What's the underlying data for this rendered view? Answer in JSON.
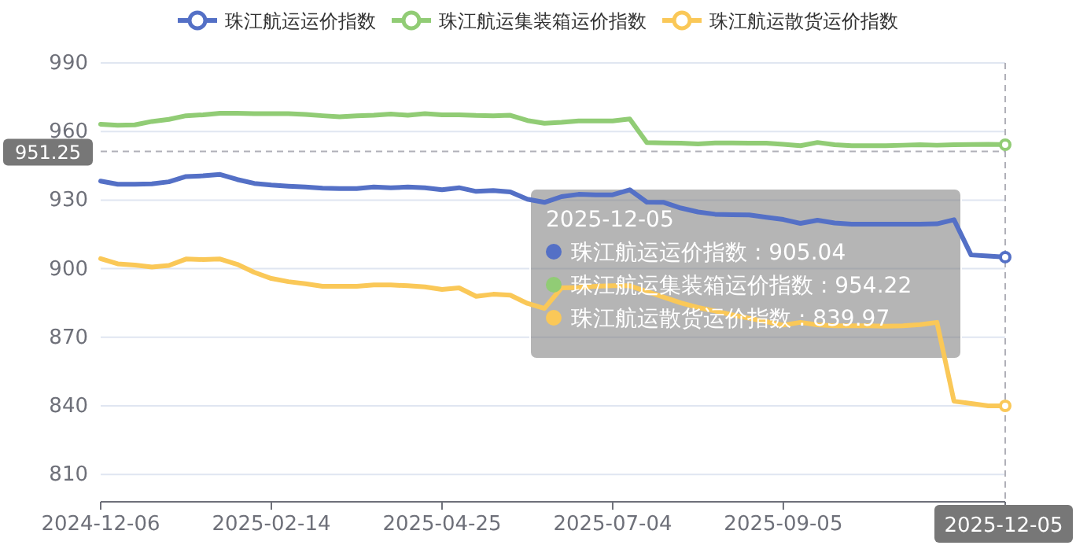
{
  "chart_data": {
    "type": "line",
    "categories": [
      "2024-12-06",
      null,
      null,
      null,
      null,
      null,
      null,
      null,
      null,
      null,
      "2025-02-14",
      null,
      null,
      null,
      null,
      null,
      null,
      null,
      null,
      null,
      "2025-04-25",
      null,
      null,
      null,
      null,
      null,
      null,
      null,
      null,
      null,
      "2025-07-04",
      null,
      null,
      null,
      null,
      null,
      null,
      null,
      null,
      null,
      "2025-09-05",
      null,
      null,
      null,
      null,
      null,
      null,
      null,
      null,
      null,
      null,
      null,
      null,
      "2025-12-05"
    ],
    "series": [
      {
        "name": "珠江航运运价指数",
        "color": "#5470c6",
        "values": [
          938.3,
          936.9,
          936.9,
          937.1,
          938.0,
          940.3,
          940.6,
          941.2,
          939.0,
          937.3,
          936.6,
          936.1,
          935.7,
          935.2,
          935.0,
          935.0,
          935.7,
          935.4,
          935.7,
          935.4,
          934.5,
          935.4,
          933.8,
          934.2,
          933.6,
          930.4,
          929.0,
          931.5,
          932.5,
          932.3,
          932.3,
          934.5,
          929.1,
          929.0,
          926.5,
          924.8,
          923.8,
          923.6,
          923.5,
          922.5,
          921.5,
          919.8,
          921.2,
          920.0,
          919.5,
          919.5,
          919.5,
          919.5,
          919.5,
          919.6,
          921.4,
          906.0,
          905.5,
          905.04
        ]
      },
      {
        "name": "珠江航运集装箱运价指数",
        "color": "#91cc75",
        "values": [
          963.2,
          962.7,
          962.9,
          964.4,
          965.3,
          966.9,
          967.3,
          968.0,
          968.0,
          967.8,
          967.8,
          967.8,
          967.5,
          966.9,
          966.4,
          966.9,
          967.1,
          967.6,
          967.1,
          967.8,
          967.3,
          967.3,
          967.0,
          966.9,
          967.1,
          964.8,
          963.6,
          964.0,
          964.6,
          964.6,
          964.6,
          965.5,
          955.2,
          955.0,
          954.9,
          954.6,
          955.0,
          955.0,
          954.9,
          954.9,
          954.4,
          953.8,
          955.2,
          954.2,
          953.8,
          953.8,
          953.8,
          954.0,
          954.2,
          954.0,
          954.2,
          954.3,
          954.4,
          954.22
        ]
      },
      {
        "name": "珠江航运散货运价指数",
        "color": "#fac858",
        "values": [
          904.4,
          902.1,
          901.6,
          900.7,
          901.4,
          904.2,
          904.0,
          904.2,
          901.9,
          898.4,
          895.7,
          894.3,
          893.4,
          892.3,
          892.3,
          892.3,
          892.9,
          892.9,
          892.5,
          892.0,
          890.9,
          891.6,
          887.9,
          888.8,
          888.4,
          884.8,
          882.6,
          891.6,
          891.8,
          892.3,
          892.5,
          892.5,
          890.0,
          887.5,
          885.0,
          883.0,
          881.5,
          879.8,
          878.3,
          876.8,
          875.3,
          876.5,
          875.4,
          875.0,
          875.0,
          875.0,
          874.8,
          875.0,
          875.5,
          876.5,
          842.0,
          841.0,
          839.97,
          839.97
        ]
      }
    ],
    "ylim": [
      798,
      990
    ],
    "yticks": [
      810,
      840,
      870,
      900,
      930,
      960,
      990
    ],
    "grid": "y",
    "legend": "top",
    "line_style": "solid",
    "marker": "none",
    "ref_lines": [
      {
        "axis": "y",
        "value": 951.25,
        "label": "951.25",
        "line_style": "dashed"
      },
      {
        "axis": "x",
        "value": "2025-12-05",
        "line_style": "dashed"
      }
    ],
    "annotations": [
      "2025-12-05",
      "珠江航运运价指数 : 905.04",
      "珠江航运集装箱运价指数 : 954.22",
      "珠江航运散货运价指数 : 839.97"
    ]
  }
}
